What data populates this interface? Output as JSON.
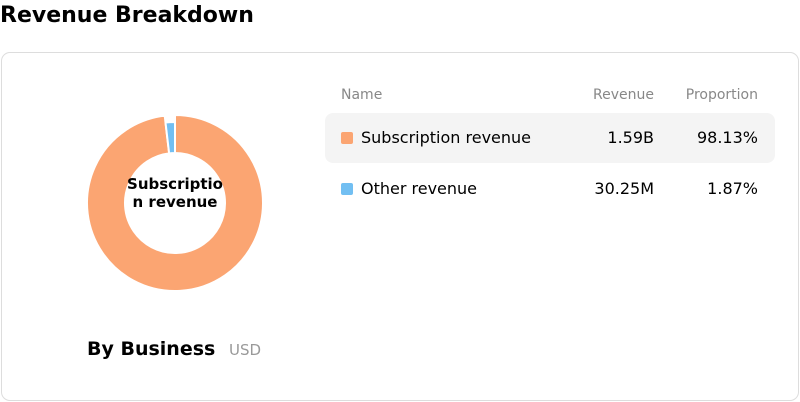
{
  "title": "Revenue Breakdown",
  "chart_data": {
    "type": "donut",
    "categories": [
      "Subscription revenue",
      "Other revenue"
    ],
    "values": [
      98.13,
      1.87
    ],
    "value_labels": [
      "98.13%",
      "1.87%"
    ],
    "revenue": [
      1590000000,
      30250000
    ],
    "revenue_labels": [
      "1.59B",
      "30.25M"
    ],
    "colors": [
      "#fba572",
      "#72bff2"
    ],
    "highlight": 0,
    "caption": "By Business",
    "unit": "USD"
  },
  "table": {
    "columns": [
      "Name",
      "Revenue",
      "Proportion"
    ]
  }
}
